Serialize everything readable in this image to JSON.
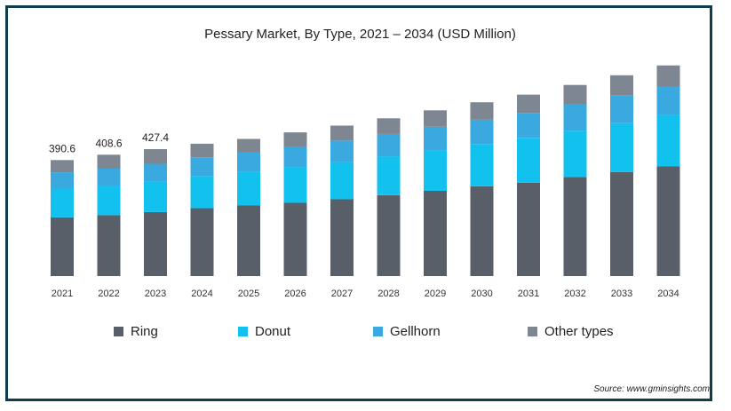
{
  "chart_data": {
    "type": "bar",
    "stacked": true,
    "title": "Pessary Market, By Type, 2021 – 2034 (USD Million)",
    "categories": [
      "2021",
      "2022",
      "2023",
      "2024",
      "2025",
      "2026",
      "2027",
      "2028",
      "2029",
      "2030",
      "2031",
      "2032",
      "2033",
      "2034"
    ],
    "series": [
      {
        "name": "Ring",
        "color": "#595f69",
        "values": [
          197.5,
          204.9,
          215.4,
          228.5,
          237.5,
          246.5,
          258.5,
          272.0,
          286.9,
          301.9,
          314.0,
          333.7,
          350.5,
          369.0
        ]
      },
      {
        "name": "Donut",
        "color": "#13c1ee",
        "values": [
          96.7,
          99.8,
          103.1,
          108.4,
          113.8,
          120.8,
          125.3,
          131.0,
          137.1,
          142.6,
          149.8,
          155.8,
          164.4,
          172.1
        ]
      },
      {
        "name": "Gellhorn",
        "color": "#3aa9e0",
        "values": [
          55.1,
          56.9,
          59.6,
          62.7,
          65.7,
          69.0,
          72.6,
          75.5,
          78.6,
          82.2,
          85.3,
          90.4,
          93.7,
          96.9
        ]
      },
      {
        "name": "Other types",
        "color": "#7d8691",
        "values": [
          41.3,
          47.0,
          49.3,
          45.9,
          44.8,
          47.6,
          50.2,
          52.5,
          55.3,
          58.5,
          61.7,
          63.5,
          67.3,
          71.1
        ]
      }
    ],
    "data_labels": [
      {
        "category": "2021",
        "text": "390.6"
      },
      {
        "category": "2022",
        "text": "408.6"
      },
      {
        "category": "2023",
        "text": "427.4"
      }
    ],
    "ylim": [
      0,
      750
    ],
    "grid": false,
    "legend_position": "bottom"
  },
  "source": "Source: www.gminsights.com"
}
